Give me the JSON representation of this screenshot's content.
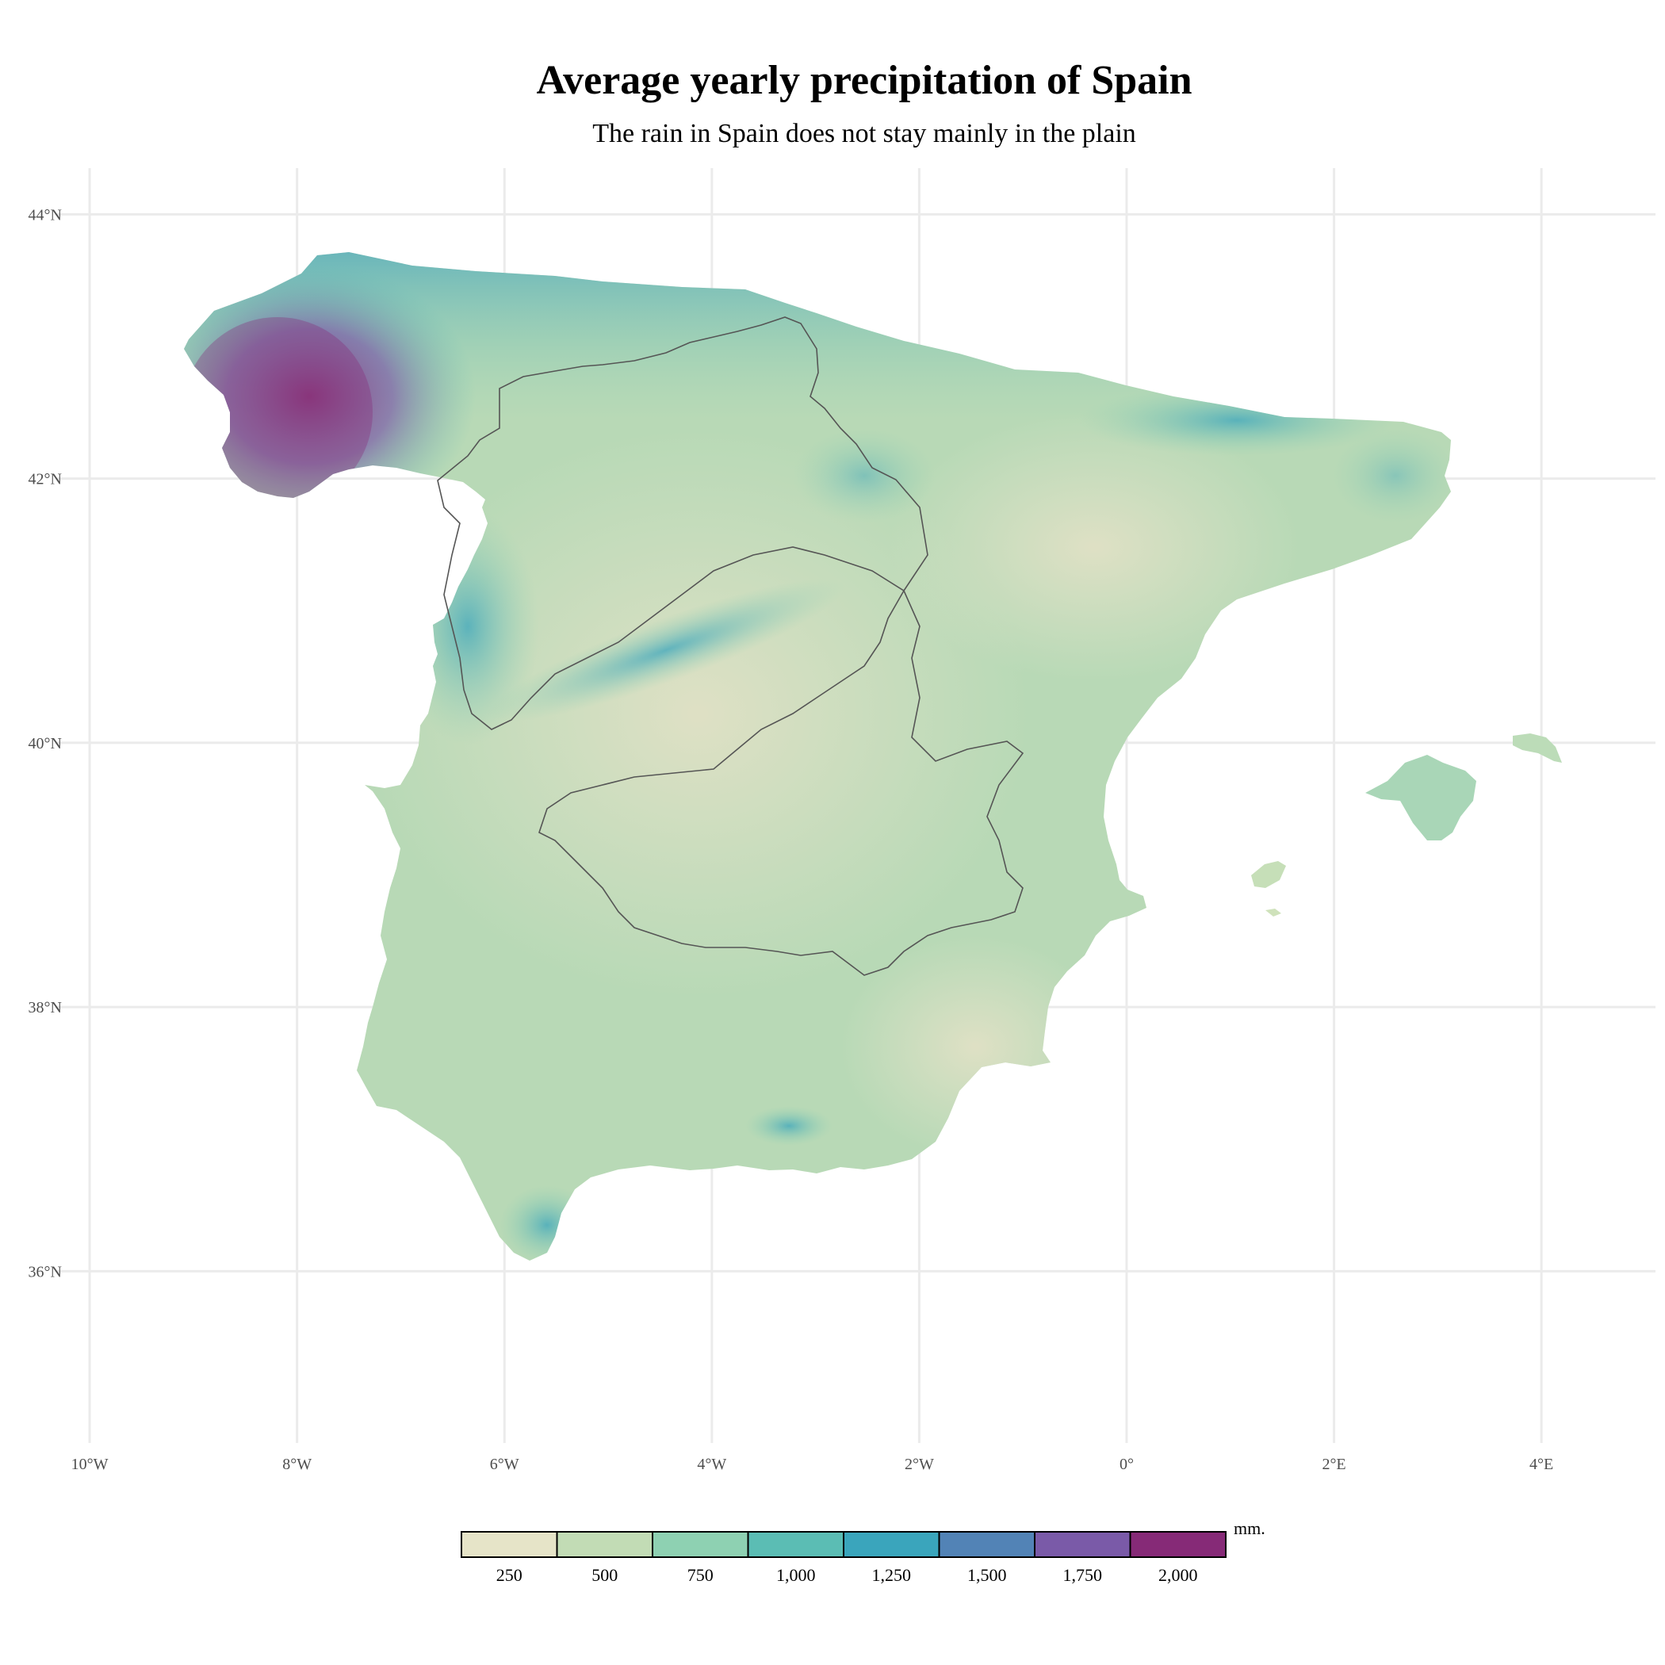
{
  "title": "Average yearly precipitation of Spain",
  "subtitle": "The rain in Spain does not stay mainly in the plain",
  "colors": {
    "grid": "#ebebeb",
    "outline": "#555555",
    "dry": "#dfe2c8",
    "wet": "#832a78"
  },
  "chart_data": {
    "type": "heatmap",
    "subject": "precipitation map of Spain",
    "x_axis": {
      "unit": "degrees longitude",
      "ticks": [
        {
          "value": -10,
          "label": "10°W"
        },
        {
          "value": -8,
          "label": "8°W"
        },
        {
          "value": -6,
          "label": "6°W"
        },
        {
          "value": -4,
          "label": "4°W"
        },
        {
          "value": -2,
          "label": "2°W"
        },
        {
          "value": 0,
          "label": "0°"
        },
        {
          "value": 2,
          "label": "2°E"
        },
        {
          "value": 4,
          "label": "4°E"
        }
      ],
      "range": [
        -10.1,
        5.1
      ]
    },
    "y_axis": {
      "unit": "degrees latitude",
      "ticks": [
        {
          "value": 44,
          "label": "44°N"
        },
        {
          "value": 42,
          "label": "42°N"
        },
        {
          "value": 40,
          "label": "40°N"
        },
        {
          "value": 38,
          "label": "38°N"
        },
        {
          "value": 36,
          "label": "36°N"
        }
      ],
      "range": [
        34.7,
        44.35
      ]
    },
    "grid": true,
    "legend": {
      "position": "bottom",
      "unit": "mm.",
      "labels": [
        "250",
        "500",
        "750",
        "1,000",
        "1,250",
        "1,500",
        "1,750",
        "2,000"
      ],
      "colors": [
        "#e6e4c8",
        "#c2dcb5",
        "#8ed1b2",
        "#5bbdb4",
        "#3aa5bc",
        "#5283b6",
        "#7a5aa8",
        "#862a77"
      ]
    }
  }
}
